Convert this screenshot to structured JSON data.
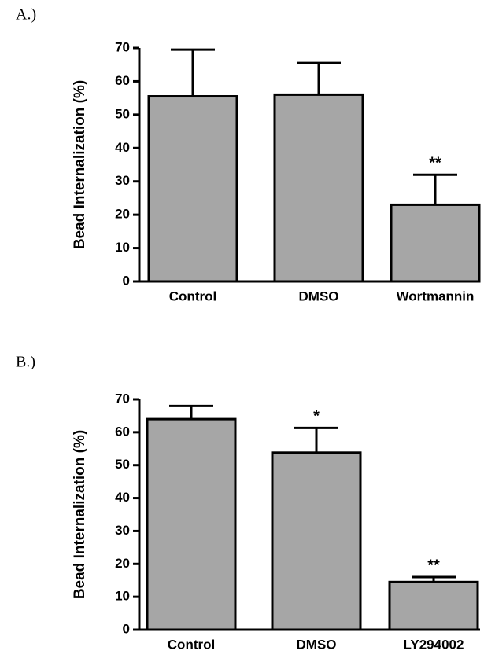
{
  "chart_data": [
    {
      "type": "bar",
      "panel_label": "A.)",
      "ylabel": "Bead Internalization (%)",
      "categories": [
        "Control",
        "DMSO",
        "Wortmannin"
      ],
      "values": [
        55.5,
        56,
        23
      ],
      "errors": [
        14,
        9.5,
        9
      ],
      "annotations": [
        null,
        null,
        "**"
      ],
      "color": "#a6a6a6",
      "ylim": [
        0,
        70
      ],
      "yticks": [
        0,
        10,
        20,
        30,
        40,
        50,
        60,
        70
      ]
    },
    {
      "type": "bar",
      "panel_label": "B.)",
      "ylabel": "Bead Internalization (%)",
      "categories": [
        "Control",
        "DMSO",
        "LY294002"
      ],
      "values": [
        64,
        53.8,
        14.5
      ],
      "errors": [
        4,
        7.5,
        1.5
      ],
      "annotations": [
        null,
        "*",
        "**"
      ],
      "color": "#a6a6a6",
      "ylim": [
        0,
        70
      ],
      "yticks": [
        0,
        10,
        20,
        30,
        40,
        50,
        60,
        70
      ]
    }
  ]
}
